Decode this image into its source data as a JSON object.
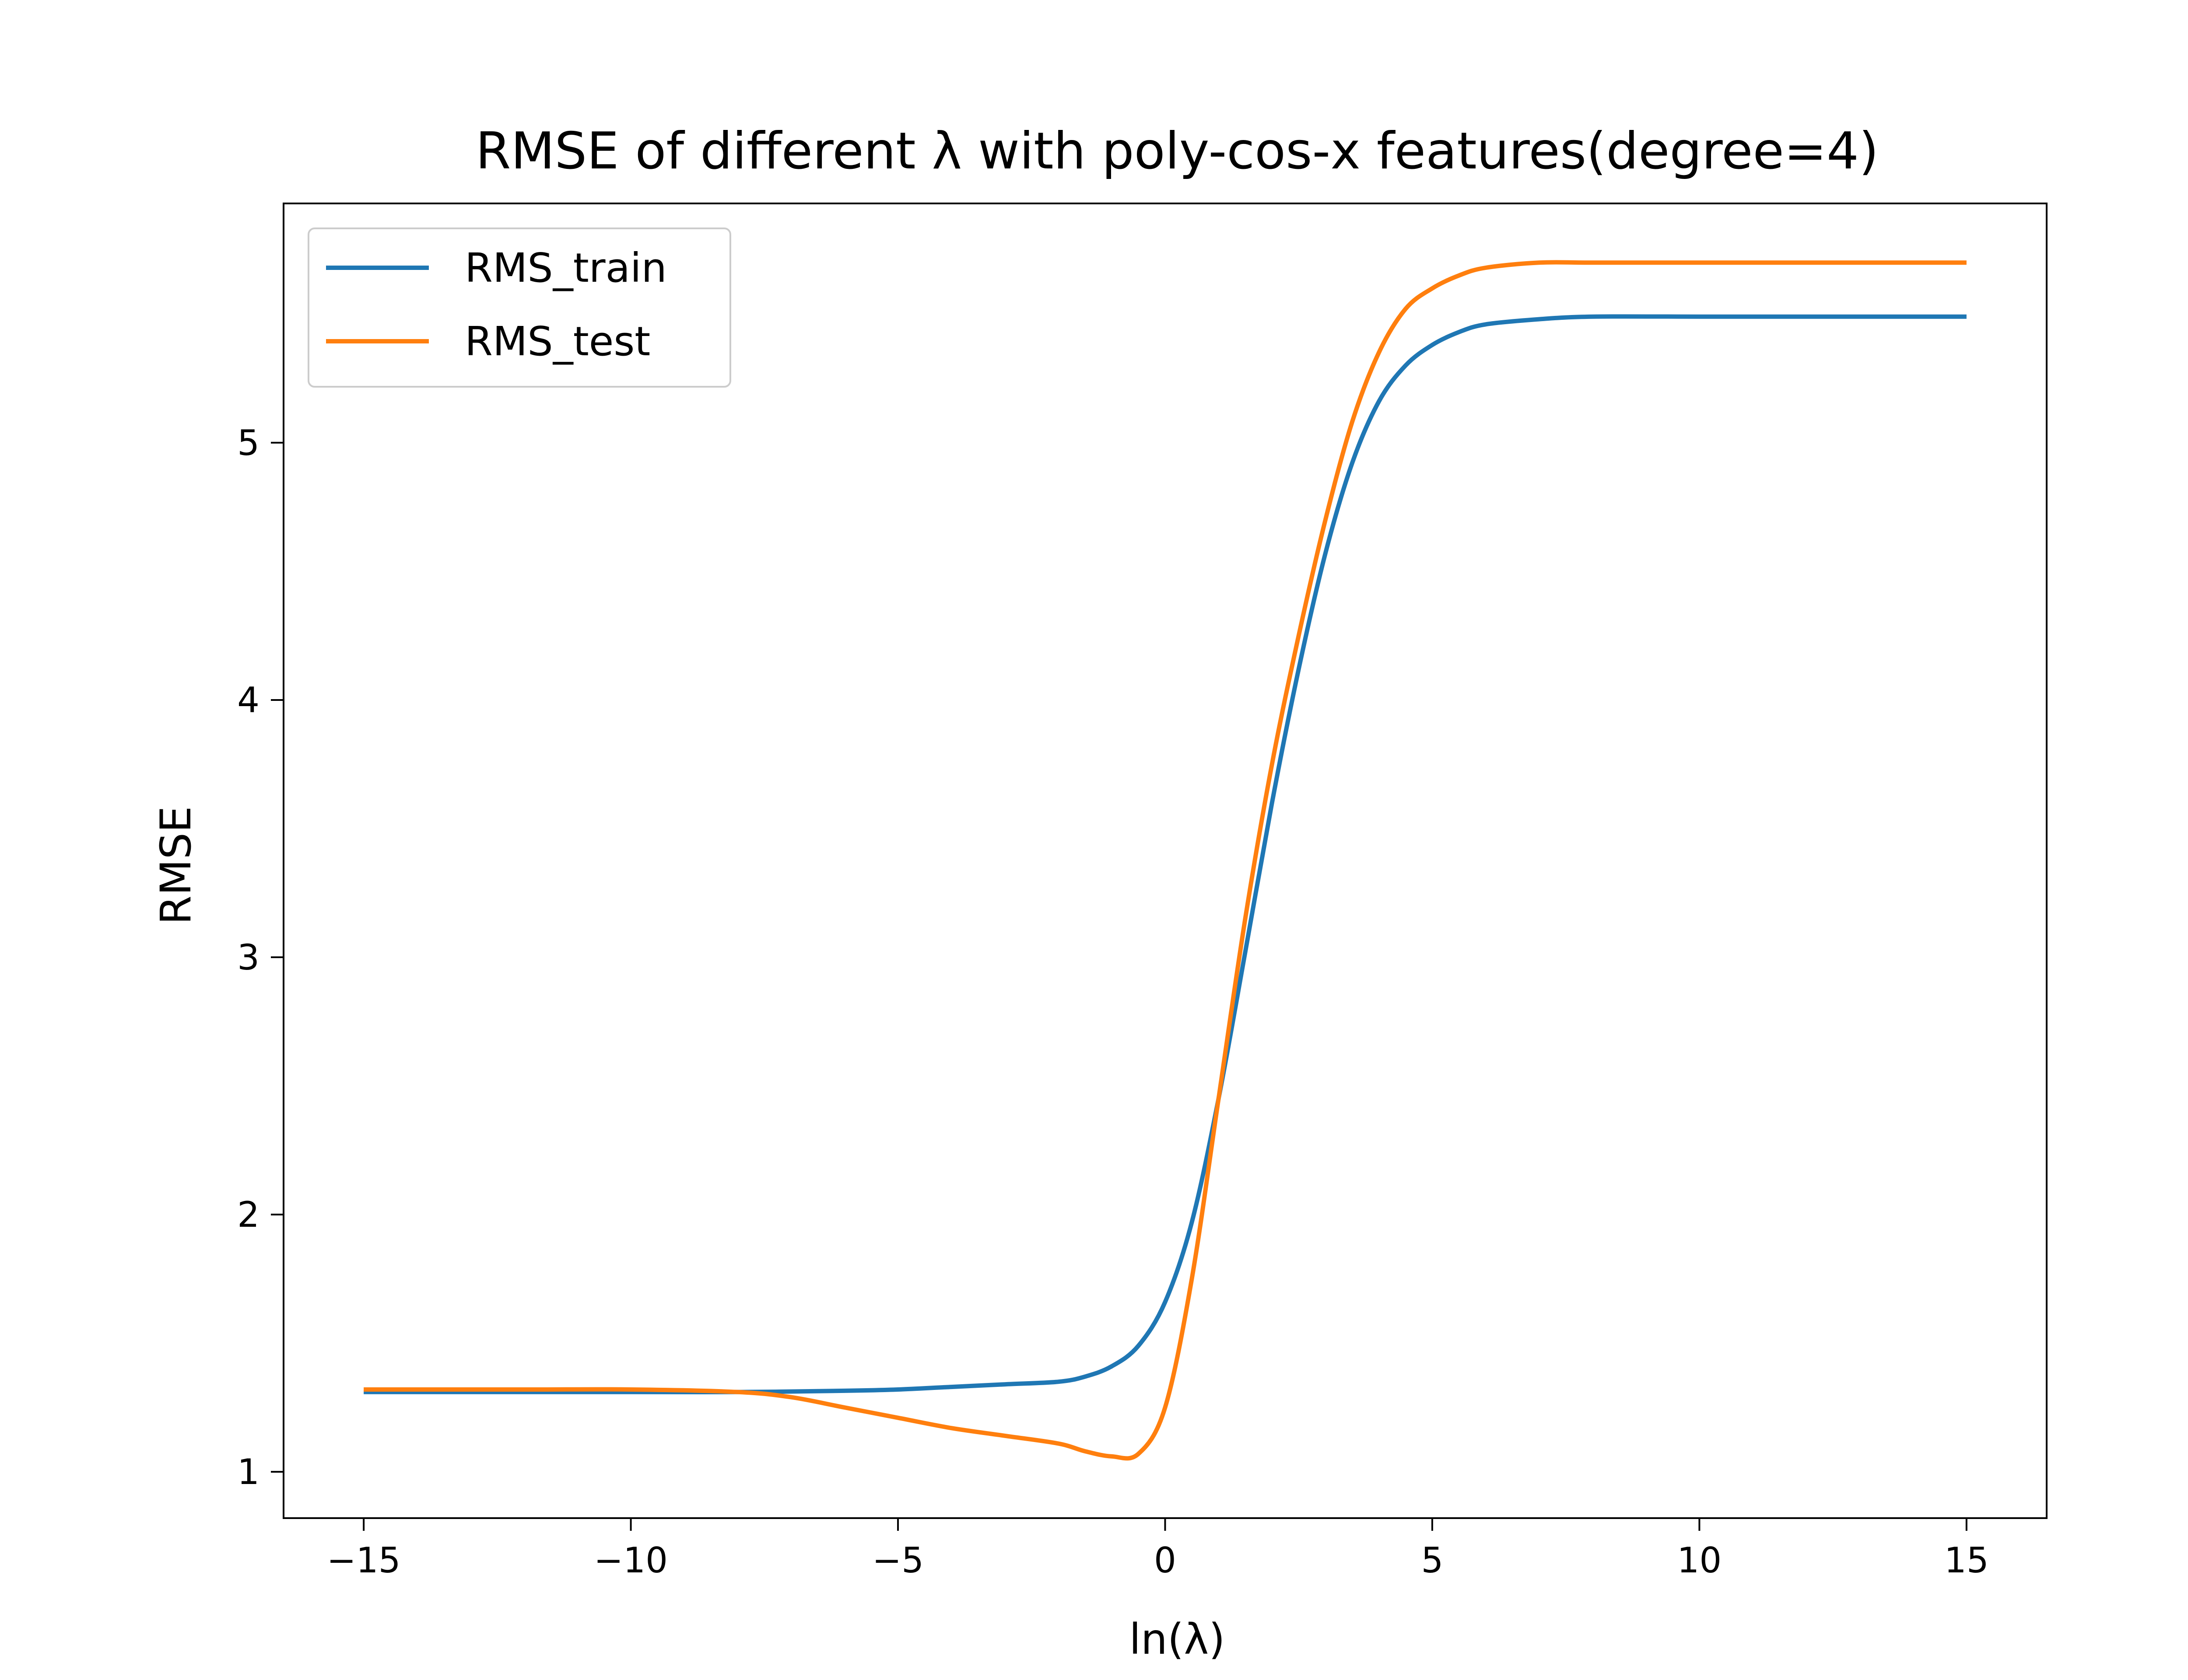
{
  "chart_data": {
    "type": "line",
    "title": "RMSE of different λ with poly-cos-x features(degree=4)",
    "xlabel": "ln(λ)",
    "ylabel": "RMSE",
    "xlim": [
      -16.5,
      16.5
    ],
    "ylim": [
      0.82,
      5.93
    ],
    "xticks": [
      -15,
      -10,
      -5,
      0,
      5,
      10,
      15
    ],
    "xtick_labels": [
      "−15",
      "−10",
      "−5",
      "0",
      "5",
      "10",
      "15"
    ],
    "yticks": [
      1,
      2,
      3,
      4,
      5
    ],
    "ytick_labels": [
      "1",
      "2",
      "3",
      "4",
      "5"
    ],
    "grid": false,
    "legend_position": "upper-left",
    "series": [
      {
        "name": "RMS_train",
        "color": "#1f77b4",
        "x": [
          -15,
          -12,
          -10,
          -8,
          -6,
          -5,
          -4,
          -3,
          -2,
          -1.5,
          -1,
          -0.5,
          0,
          0.5,
          1,
          1.5,
          2,
          2.5,
          3,
          3.5,
          4,
          4.5,
          5,
          5.5,
          6,
          7,
          8,
          10,
          12,
          15
        ],
        "y": [
          1.31,
          1.31,
          1.31,
          1.31,
          1.315,
          1.32,
          1.33,
          1.34,
          1.35,
          1.37,
          1.41,
          1.49,
          1.66,
          1.97,
          2.45,
          3.02,
          3.6,
          4.12,
          4.57,
          4.92,
          5.16,
          5.3,
          5.38,
          5.43,
          5.46,
          5.48,
          5.49,
          5.49,
          5.49,
          5.49
        ]
      },
      {
        "name": "RMS_test",
        "color": "#ff7f0e",
        "x": [
          -15,
          -12,
          -10,
          -8,
          -7,
          -6,
          -5,
          -4,
          -3,
          -2,
          -1.5,
          -1,
          -0.5,
          0,
          0.5,
          1,
          1.5,
          2,
          2.5,
          3,
          3.5,
          4,
          4.5,
          5,
          5.5,
          6,
          7,
          8,
          10,
          12,
          15
        ],
        "y": [
          1.32,
          1.32,
          1.32,
          1.31,
          1.29,
          1.25,
          1.21,
          1.17,
          1.14,
          1.11,
          1.08,
          1.06,
          1.07,
          1.25,
          1.75,
          2.45,
          3.15,
          3.75,
          4.25,
          4.7,
          5.08,
          5.35,
          5.52,
          5.6,
          5.65,
          5.68,
          5.7,
          5.7,
          5.7,
          5.7,
          5.7
        ]
      }
    ]
  }
}
